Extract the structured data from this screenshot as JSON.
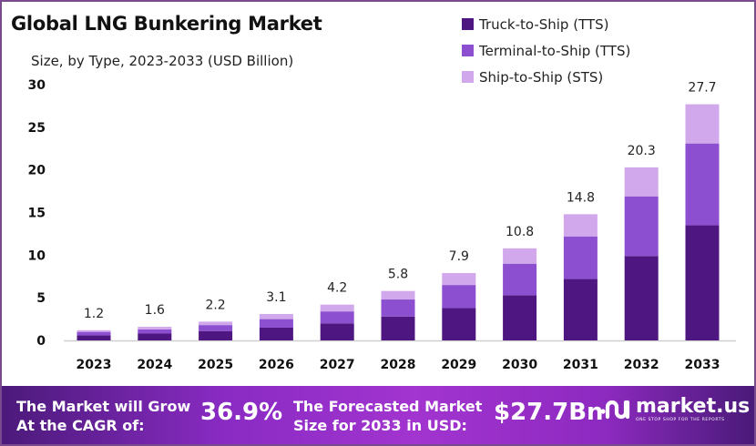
{
  "header": {
    "title": "Global LNG Bunkering Market",
    "subtitle": "Size, by Type, 2023-2033 (USD Billion)"
  },
  "chart_data": {
    "type": "bar",
    "stacked": true,
    "title": "Global LNG Bunkering Market",
    "subtitle": "Size, by Type, 2023-2033 (USD Billion)",
    "xlabel": "",
    "ylabel": "USD Billion",
    "ylim": [
      0,
      30
    ],
    "yticks": [
      0,
      5,
      10,
      15,
      20,
      25,
      30
    ],
    "grid": false,
    "legend_position": "top-right",
    "categories": [
      "2023",
      "2024",
      "2025",
      "2026",
      "2027",
      "2028",
      "2029",
      "2030",
      "2031",
      "2032",
      "2033"
    ],
    "series": [
      {
        "name": "Truck-to-Ship (TTS)",
        "color": "#4e1680",
        "values": [
          0.6,
          0.8,
          1.1,
          1.5,
          2.0,
          2.8,
          3.8,
          5.3,
          7.2,
          9.9,
          13.5
        ]
      },
      {
        "name": "Terminal-to-Ship (TTS)",
        "color": "#8b4fcf",
        "values": [
          0.4,
          0.5,
          0.7,
          1.0,
          1.4,
          2.0,
          2.7,
          3.7,
          5.0,
          7.0,
          9.6
        ]
      },
      {
        "name": "Ship-to-Ship (STS)",
        "color": "#d2a8ec",
        "values": [
          0.2,
          0.3,
          0.4,
          0.6,
          0.8,
          1.0,
          1.4,
          1.8,
          2.6,
          3.4,
          4.6
        ]
      }
    ],
    "totals": [
      1.2,
      1.6,
      2.2,
      3.1,
      4.2,
      5.8,
      7.9,
      10.8,
      14.8,
      20.3,
      27.7
    ],
    "total_labels": [
      "1.2",
      "1.6",
      "2.2",
      "3.1",
      "4.2",
      "5.8",
      "7.9",
      "10.8",
      "14.8",
      "20.3",
      "27.7"
    ]
  },
  "legend": [
    {
      "label": "Truck-to-Ship (TTS)",
      "color": "#4e1680"
    },
    {
      "label": "Terminal-to-Ship (TTS)",
      "color": "#8b4fcf"
    },
    {
      "label": "Ship-to-Ship (STS)",
      "color": "#d2a8ec"
    }
  ],
  "banner": {
    "cagr_text_line1": "The Market will Grow",
    "cagr_text_line2": "At the CAGR of:",
    "cagr_value": "36.9%",
    "size_text_line1": "The Forecasted Market",
    "size_text_line2": "Size for 2033 in USD:",
    "size_value": "$27.7Bn",
    "brand_name": "market.us",
    "brand_tagline": "ONE STOP SHOP FOR THE REPORTS"
  }
}
